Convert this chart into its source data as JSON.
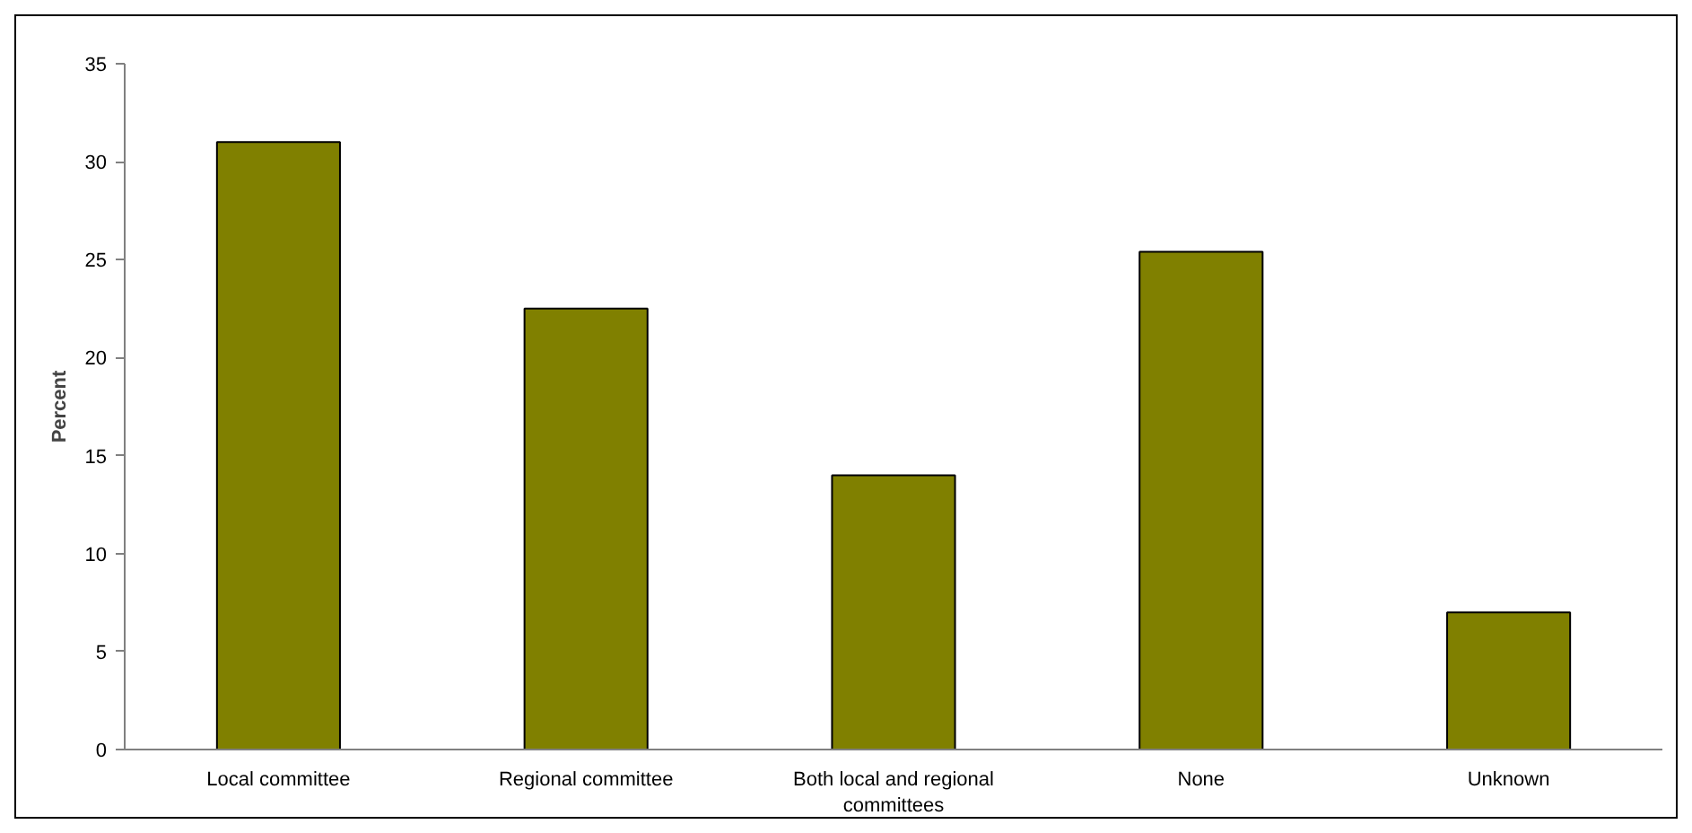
{
  "chart_data": {
    "type": "bar",
    "ylabel": "Percent",
    "categories": [
      "Local committee",
      "Regional committee",
      "Both local and regional committees",
      "None",
      "Unknown"
    ],
    "values": [
      31.0,
      22.5,
      14.0,
      25.4,
      7.0
    ],
    "color": "#808000",
    "ylim": [
      0,
      35
    ],
    "yticks": [
      0,
      5,
      10,
      15,
      20,
      25,
      30,
      35
    ],
    "grid": false
  }
}
